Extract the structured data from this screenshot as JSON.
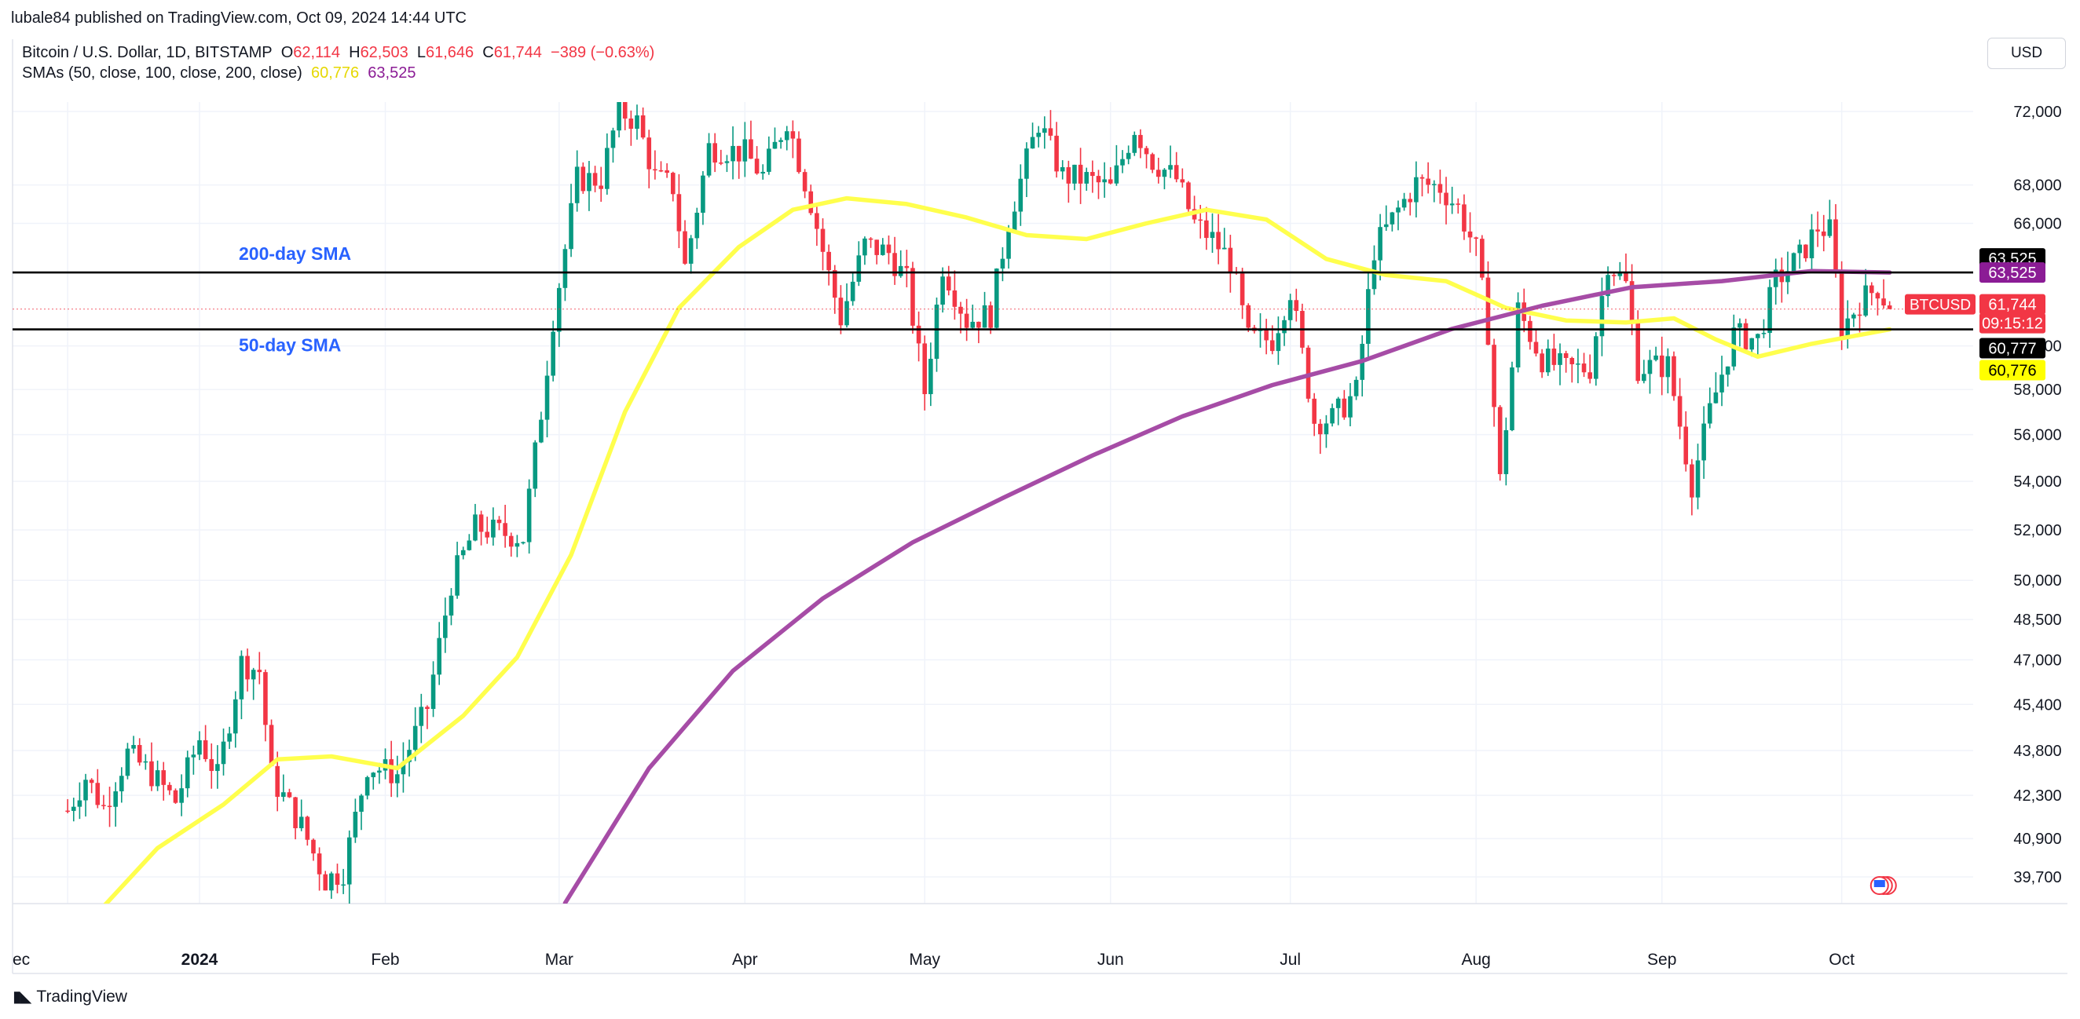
{
  "publisher": "lubale84 published on TradingView.com, Oct 09, 2024 14:44 UTC",
  "currency": "USD",
  "legend": {
    "symbol": "Bitcoin / U.S. Dollar, 1D, BITSTAMP",
    "o_label": "O",
    "o_value": "62,114",
    "h_label": "H",
    "h_value": "62,503",
    "l_label": "L",
    "l_value": "61,646",
    "c_label": "C",
    "c_value": "61,744",
    "change": "−389 (−0.63%)",
    "sma_label": "SMAs (50, close, 100, close, 200, close)",
    "sma50_value": "60,776",
    "sma200_value": "63,525"
  },
  "brand": "TradingView",
  "chart_data": {
    "type": "candlestick",
    "symbol": "BTCUSD",
    "y_scale": "log",
    "y_ticks": [
      39700,
      40900,
      42300,
      43800,
      45400,
      47000,
      48500,
      50000,
      52000,
      54000,
      56000,
      58000,
      60000,
      66000,
      68000,
      72000
    ],
    "y_tick_labels": [
      "39,700",
      "40,900",
      "42,300",
      "43,800",
      "45,400",
      "47,000",
      "48,500",
      "50,000",
      "52,000",
      "54,000",
      "56,000",
      "58,000",
      "60,000",
      "66,000",
      "68,000",
      "72,000"
    ],
    "x_labels": [
      {
        "label": "ec",
        "day": -22
      },
      {
        "label": "2024",
        "day": 0
      },
      {
        "label": "Feb",
        "day": 31
      },
      {
        "label": "Mar",
        "day": 60
      },
      {
        "label": "Apr",
        "day": 91
      },
      {
        "label": "May",
        "day": 121
      },
      {
        "label": "Jun",
        "day": 152
      },
      {
        "label": "Jul",
        "day": 182
      },
      {
        "label": "Aug",
        "day": 213
      },
      {
        "label": "Sep",
        "day": 244
      },
      {
        "label": "Oct",
        "day": 274
      }
    ],
    "price_path": [
      [
        "2023-12-10",
        41800
      ],
      [
        "2023-12-13",
        42900
      ],
      [
        "2023-12-16",
        41900
      ],
      [
        "2023-12-20",
        43700
      ],
      [
        "2023-12-24",
        43000
      ],
      [
        "2023-12-28",
        42100
      ],
      [
        "2024-01-01",
        44200
      ],
      [
        "2024-01-04",
        42900
      ],
      [
        "2024-01-08",
        46900
      ],
      [
        "2024-01-11",
        46600
      ],
      [
        "2024-01-13",
        42900
      ],
      [
        "2024-01-18",
        41300
      ],
      [
        "2024-01-22",
        39600
      ],
      [
        "2024-01-25",
        39900
      ],
      [
        "2024-01-29",
        43300
      ],
      [
        "2024-02-03",
        43000
      ],
      [
        "2024-02-08",
        45300
      ],
      [
        "2024-02-12",
        49900
      ],
      [
        "2024-02-16",
        52100
      ],
      [
        "2024-02-20",
        51900
      ],
      [
        "2024-02-24",
        51700
      ],
      [
        "2024-02-27",
        57000
      ],
      [
        "2024-02-29",
        61300
      ],
      [
        "2024-03-04",
        68300
      ],
      [
        "2024-03-08",
        68300
      ],
      [
        "2024-03-11",
        72100
      ],
      [
        "2024-03-14",
        71400
      ],
      [
        "2024-03-17",
        68400
      ],
      [
        "2024-03-20",
        67900
      ],
      [
        "2024-03-22",
        63800
      ],
      [
        "2024-03-26",
        70000
      ],
      [
        "2024-03-29",
        69900
      ],
      [
        "2024-04-01",
        69700
      ],
      [
        "2024-04-04",
        68500
      ],
      [
        "2024-04-08",
        71600
      ],
      [
        "2024-04-12",
        67100
      ],
      [
        "2024-04-15",
        63400
      ],
      [
        "2024-04-17",
        61300
      ],
      [
        "2024-04-21",
        64900
      ],
      [
        "2024-04-25",
        64500
      ],
      [
        "2024-04-28",
        63100
      ],
      [
        "2024-05-01",
        57900
      ],
      [
        "2024-05-04",
        63900
      ],
      [
        "2024-05-08",
        61200
      ],
      [
        "2024-05-12",
        61500
      ],
      [
        "2024-05-15",
        66200
      ],
      [
        "2024-05-20",
        71400
      ],
      [
        "2024-05-24",
        68500
      ],
      [
        "2024-05-28",
        68300
      ],
      [
        "2024-06-01",
        67800
      ],
      [
        "2024-06-05",
        71100
      ],
      [
        "2024-06-08",
        69300
      ],
      [
        "2024-06-12",
        68300
      ],
      [
        "2024-06-15",
        66000
      ],
      [
        "2024-06-18",
        65200
      ],
      [
        "2024-06-21",
        64100
      ],
      [
        "2024-06-24",
        60300
      ],
      [
        "2024-06-28",
        60300
      ],
      [
        "2024-07-01",
        62700
      ],
      [
        "2024-07-05",
        56600
      ],
      [
        "2024-07-08",
        56700
      ],
      [
        "2024-07-12",
        57900
      ],
      [
        "2024-07-15",
        64700
      ],
      [
        "2024-07-19",
        66700
      ],
      [
        "2024-07-22",
        68100
      ],
      [
        "2024-07-26",
        67900
      ],
      [
        "2024-07-29",
        66800
      ],
      [
        "2024-08-01",
        64600
      ],
      [
        "2024-08-03",
        60700
      ],
      [
        "2024-08-05",
        54000
      ],
      [
        "2024-08-08",
        61700
      ],
      [
        "2024-08-12",
        59400
      ],
      [
        "2024-08-16",
        58900
      ],
      [
        "2024-08-20",
        59000
      ],
      [
        "2024-08-23",
        64100
      ],
      [
        "2024-08-26",
        62900
      ],
      [
        "2024-08-28",
        59000
      ],
      [
        "2024-09-02",
        59100
      ],
      [
        "2024-09-06",
        53900
      ],
      [
        "2024-09-09",
        57000
      ],
      [
        "2024-09-13",
        60500
      ],
      [
        "2024-09-17",
        60300
      ],
      [
        "2024-09-20",
        63100
      ],
      [
        "2024-09-24",
        64300
      ],
      [
        "2024-09-27",
        65800
      ],
      [
        "2024-09-29",
        65600
      ],
      [
        "2024-10-01",
        60800
      ],
      [
        "2024-10-04",
        62100
      ],
      [
        "2024-10-07",
        62800
      ],
      [
        "2024-10-09",
        61744
      ]
    ],
    "sma50": [
      [
        "2023-12-16",
        38800
      ],
      [
        "2023-12-25",
        40600
      ],
      [
        "2024-01-05",
        42000
      ],
      [
        "2024-01-14",
        43500
      ],
      [
        "2024-01-23",
        43600
      ],
      [
        "2024-02-03",
        43200
      ],
      [
        "2024-02-14",
        45000
      ],
      [
        "2024-02-23",
        47100
      ],
      [
        "2024-03-03",
        51000
      ],
      [
        "2024-03-12",
        57000
      ],
      [
        "2024-03-21",
        61800
      ],
      [
        "2024-03-31",
        64800
      ],
      [
        "2024-04-09",
        66700
      ],
      [
        "2024-04-18",
        67300
      ],
      [
        "2024-04-28",
        67000
      ],
      [
        "2024-05-08",
        66300
      ],
      [
        "2024-05-18",
        65400
      ],
      [
        "2024-05-28",
        65200
      ],
      [
        "2024-06-07",
        66000
      ],
      [
        "2024-06-17",
        66700
      ],
      [
        "2024-06-27",
        66200
      ],
      [
        "2024-07-07",
        64200
      ],
      [
        "2024-07-17",
        63400
      ],
      [
        "2024-07-27",
        63100
      ],
      [
        "2024-08-06",
        61800
      ],
      [
        "2024-08-16",
        61200
      ],
      [
        "2024-08-26",
        61100
      ],
      [
        "2024-09-03",
        61300
      ],
      [
        "2024-09-10",
        60300
      ],
      [
        "2024-09-17",
        59500
      ],
      [
        "2024-09-26",
        60100
      ],
      [
        "2024-10-09",
        60776
      ]
    ],
    "sma200": [
      [
        "2024-03-02",
        38900
      ],
      [
        "2024-03-16",
        43200
      ],
      [
        "2024-03-30",
        46600
      ],
      [
        "2024-04-14",
        49300
      ],
      [
        "2024-04-29",
        51500
      ],
      [
        "2024-05-14",
        53300
      ],
      [
        "2024-05-29",
        55100
      ],
      [
        "2024-06-13",
        56800
      ],
      [
        "2024-06-28",
        58200
      ],
      [
        "2024-07-13",
        59300
      ],
      [
        "2024-07-28",
        60800
      ],
      [
        "2024-08-12",
        61900
      ],
      [
        "2024-08-27",
        62800
      ],
      [
        "2024-09-11",
        63100
      ],
      [
        "2024-09-26",
        63600
      ],
      [
        "2024-10-09",
        63525
      ]
    ],
    "horizontal_lines": [
      {
        "name": "200-day SMA",
        "value": 63525
      },
      {
        "name": "50-day SMA",
        "value": 60777
      }
    ],
    "last_price_line": 61744,
    "axis_badges": [
      {
        "text": "63,525",
        "value": 63525,
        "bg": "#000000",
        "fg": "#ffffff",
        "offset": -18
      },
      {
        "text": "63,525",
        "value": 63525,
        "bg": "#8b1c95",
        "fg": "#ffffff",
        "offset": 0
      },
      {
        "text": "61,744",
        "value": 61744,
        "bg": "#f23645",
        "fg": "#ffffff",
        "offset": -6
      },
      {
        "text": "09:15:12",
        "value": 61744,
        "bg": "#f23645",
        "fg": "#ffffff",
        "offset": 18
      },
      {
        "text": "60,777",
        "value": 60777,
        "bg": "#000000",
        "fg": "#ffffff",
        "offset": 24
      },
      {
        "text": "60,776",
        "value": 60776,
        "bg": "#ffff00",
        "fg": "#000000",
        "offset": 52
      }
    ],
    "symbol_tag": "BTCUSD",
    "colors": {
      "up": "#089981",
      "down": "#f23645",
      "sma50": "#ffff4d",
      "sma200": "#a64ca6",
      "hline": "#000000",
      "grid": "#f0f3fa"
    }
  }
}
